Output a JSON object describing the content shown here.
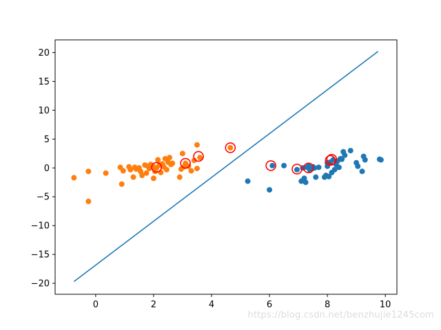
{
  "chart_data": {
    "type": "scatter",
    "title": "",
    "xlabel": "",
    "ylabel": "",
    "xlim": [
      -1.4,
      10.4
    ],
    "ylim": [
      -21.9,
      22.2
    ],
    "xticks": [
      0,
      2,
      4,
      6,
      8,
      10
    ],
    "yticks": [
      -20,
      -15,
      -10,
      -5,
      0,
      5,
      10,
      15,
      20
    ],
    "grid": false,
    "legend": "none",
    "colors": {
      "orange": "#ff7f0e",
      "blue": "#1f77b4",
      "line": "#1f77b4",
      "support_vector_ring": "#ff0000"
    },
    "series": [
      {
        "color": "orange",
        "marker": "point",
        "x": [
          -0.75,
          -0.25,
          -0.25,
          0.35,
          0.85,
          0.9,
          0.95,
          1.15,
          1.2,
          1.3,
          1.35,
          1.4,
          1.5,
          1.55,
          1.6,
          1.7,
          1.75,
          1.8,
          1.85,
          1.9,
          2.0,
          2.0,
          2.05,
          2.1,
          2.15,
          2.2,
          2.25,
          2.3,
          2.35,
          2.4,
          2.45,
          2.5,
          2.55,
          2.6,
          2.65,
          2.9,
          2.95,
          3.0,
          3.05,
          3.1,
          3.2,
          3.3,
          3.4,
          3.5,
          3.5,
          3.6,
          4.65
        ],
        "y": [
          -1.7,
          -0.6,
          -5.8,
          -0.9,
          0.1,
          -2.8,
          -0.5,
          0.2,
          -0.3,
          -1.6,
          0.1,
          -0.2,
          0.0,
          -0.6,
          -1.3,
          0.5,
          -0.9,
          0.3,
          -0.1,
          0.6,
          -1.8,
          0.2,
          -0.6,
          0.0,
          1.4,
          0.5,
          -0.8,
          0.7,
          0.2,
          1.6,
          -0.3,
          1.0,
          1.8,
          0.6,
          0.8,
          -1.6,
          -0.2,
          2.5,
          0.2,
          0.8,
          0.3,
          -0.5,
          1.3,
          -0.1,
          4.0,
          1.8,
          3.5
        ]
      },
      {
        "color": "blue",
        "marker": "point",
        "x": [
          5.25,
          6.0,
          6.1,
          6.5,
          6.95,
          7.1,
          7.15,
          7.2,
          7.25,
          7.3,
          7.35,
          7.4,
          7.45,
          7.5,
          7.55,
          7.6,
          7.7,
          7.9,
          7.95,
          8.0,
          8.0,
          8.05,
          8.1,
          8.15,
          8.2,
          8.25,
          8.3,
          8.35,
          8.4,
          8.45,
          8.5,
          8.55,
          8.6,
          8.8,
          9.0,
          9.05,
          9.2,
          9.25,
          9.3,
          9.8,
          9.85
        ],
        "y": [
          -2.3,
          -3.8,
          0.4,
          0.4,
          -0.3,
          -2.3,
          0.0,
          -1.8,
          -2.5,
          0.1,
          0.3,
          -0.4,
          -0.2,
          0.2,
          0.0,
          -1.6,
          0.1,
          -1.6,
          -1.3,
          0.9,
          0.3,
          -1.5,
          1.0,
          -0.8,
          1.4,
          -0.3,
          0.6,
          1.2,
          0.1,
          1.6,
          1.5,
          2.8,
          2.2,
          3.0,
          0.9,
          0.3,
          -0.6,
          2.0,
          1.4,
          1.5,
          1.4
        ]
      },
      {
        "color": "support_vector_ring",
        "marker": "ring",
        "x": [
          2.1,
          3.1,
          3.55,
          4.65,
          6.05,
          6.95,
          7.35,
          8.1,
          8.15
        ],
        "y": [
          0.1,
          0.8,
          2.0,
          3.5,
          0.4,
          -0.2,
          0.0,
          1.3,
          1.5
        ]
      },
      {
        "color": "line",
        "marker": "line",
        "x": [
          -0.75,
          9.75
        ],
        "y": [
          -19.7,
          20.2
        ]
      }
    ]
  },
  "watermark": "https://blog.csdn.net/benzhujie1245com"
}
